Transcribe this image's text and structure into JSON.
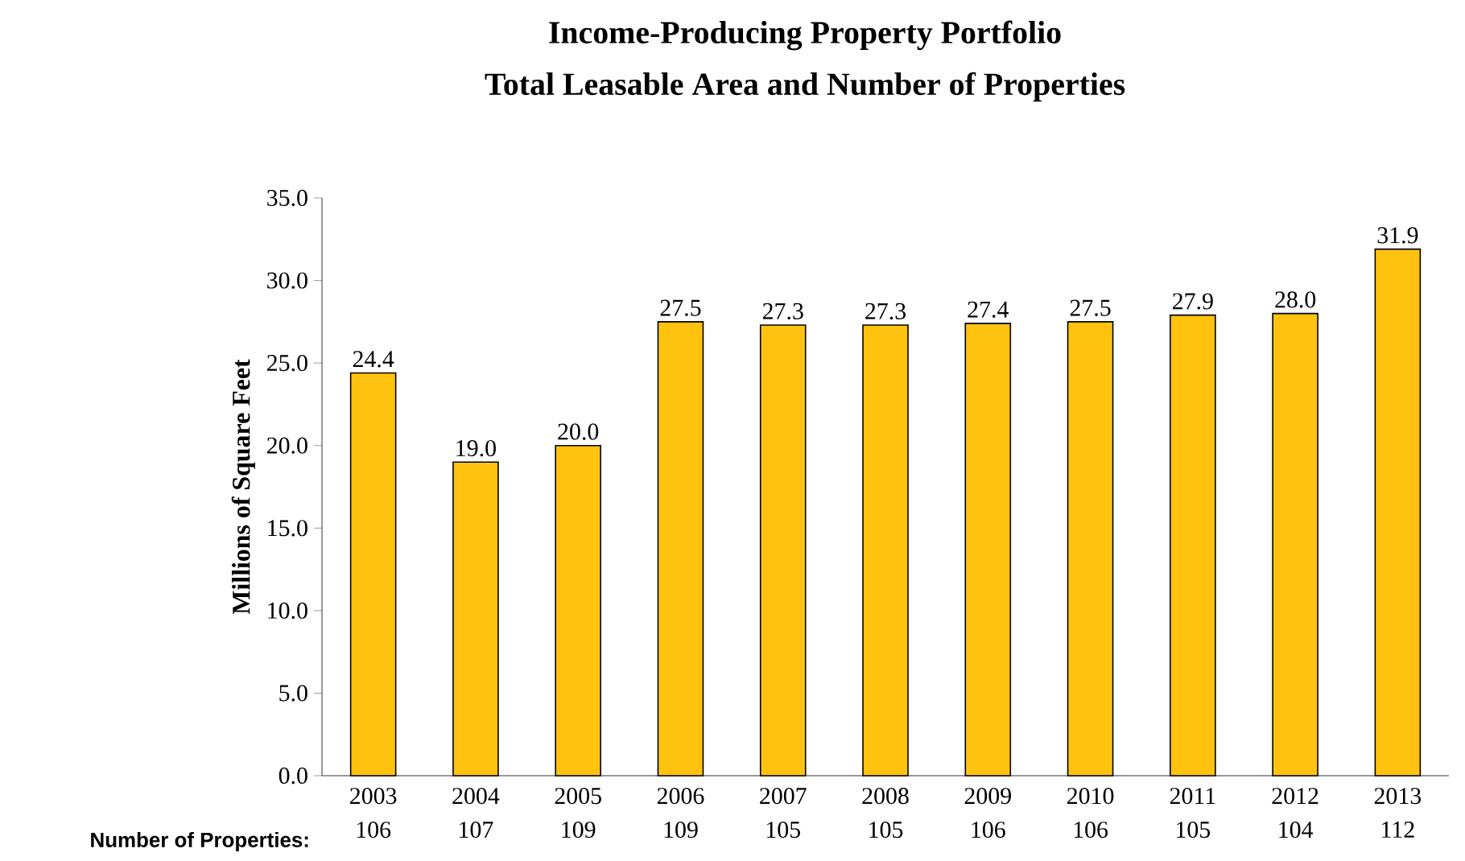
{
  "chart_data": {
    "type": "bar",
    "title": "Income-Producing Property Portfolio",
    "subtitle": "Total Leasable Area and Number of Properties",
    "ylabel": "Millions of Square Feet",
    "categories": [
      "2003",
      "2004",
      "2005",
      "2006",
      "2007",
      "2008",
      "2009",
      "2010",
      "2011",
      "2012",
      "2013"
    ],
    "values": [
      24.4,
      19.0,
      20.0,
      27.5,
      27.3,
      27.3,
      27.4,
      27.5,
      27.9,
      28.0,
      31.9
    ],
    "value_labels": [
      "24.4",
      "19.0",
      "20.0",
      "27.5",
      "27.3",
      "27.3",
      "27.4",
      "27.5",
      "27.9",
      "28.0",
      "31.9"
    ],
    "color": "#ffc20e",
    "ylim": [
      0,
      35
    ],
    "yticks": [
      {
        "value": 0,
        "label": "0.0"
      },
      {
        "value": 5,
        "label": "5.0"
      },
      {
        "value": 10,
        "label": "10.0"
      },
      {
        "value": 15,
        "label": "15.0"
      },
      {
        "value": 20,
        "label": "20.0"
      },
      {
        "value": 25,
        "label": "25.0"
      },
      {
        "value": 30,
        "label": "30.0"
      },
      {
        "value": 35,
        "label": "35.0"
      }
    ],
    "grid": false,
    "annotations": [
      "Number of Properties:",
      "106",
      "107",
      "109",
      "109",
      "105",
      "105",
      "106",
      "106",
      "105",
      "104",
      "112"
    ]
  }
}
